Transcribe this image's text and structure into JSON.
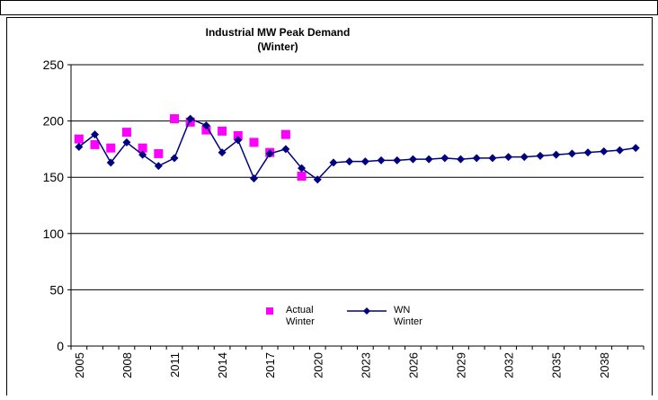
{
  "chart_data": {
    "type": "line",
    "title": "Industrial MW Peak Demand",
    "subtitle": "(Winter)",
    "categories": [
      "2005",
      null,
      null,
      "2008",
      null,
      null,
      "2011",
      null,
      null,
      "2014",
      null,
      null,
      "2017",
      null,
      null,
      "2020",
      null,
      null,
      "2023",
      null,
      null,
      "2026",
      null,
      null,
      "2029",
      null,
      null,
      "2032",
      null,
      null,
      "2035",
      null,
      null,
      "2038",
      null,
      null
    ],
    "series": [
      {
        "name": "Actual Winter",
        "color": "#ff00ff",
        "line": false,
        "marker": "square",
        "values": [
          184,
          179,
          176,
          190,
          176,
          171,
          202,
          199,
          192,
          191,
          187,
          181,
          172,
          188,
          151,
          null,
          null,
          null,
          null,
          null,
          null,
          null,
          null,
          null,
          null,
          null,
          null,
          null,
          null,
          null,
          null,
          null,
          null,
          null,
          null,
          null
        ]
      },
      {
        "name": "WN Winter",
        "color": "#000080",
        "line": true,
        "marker": "diamond",
        "values": [
          177,
          188,
          163,
          181,
          170,
          160,
          167,
          202,
          196,
          172,
          183,
          149,
          171,
          175,
          158,
          148,
          163,
          164,
          164,
          165,
          165,
          166,
          166,
          167,
          166,
          167,
          167,
          168,
          168,
          169,
          170,
          171,
          172,
          173,
          174,
          176
        ]
      }
    ],
    "ylim": [
      0,
      250
    ],
    "yticks": [
      0,
      50,
      100,
      150,
      200,
      250
    ],
    "grid": true
  }
}
